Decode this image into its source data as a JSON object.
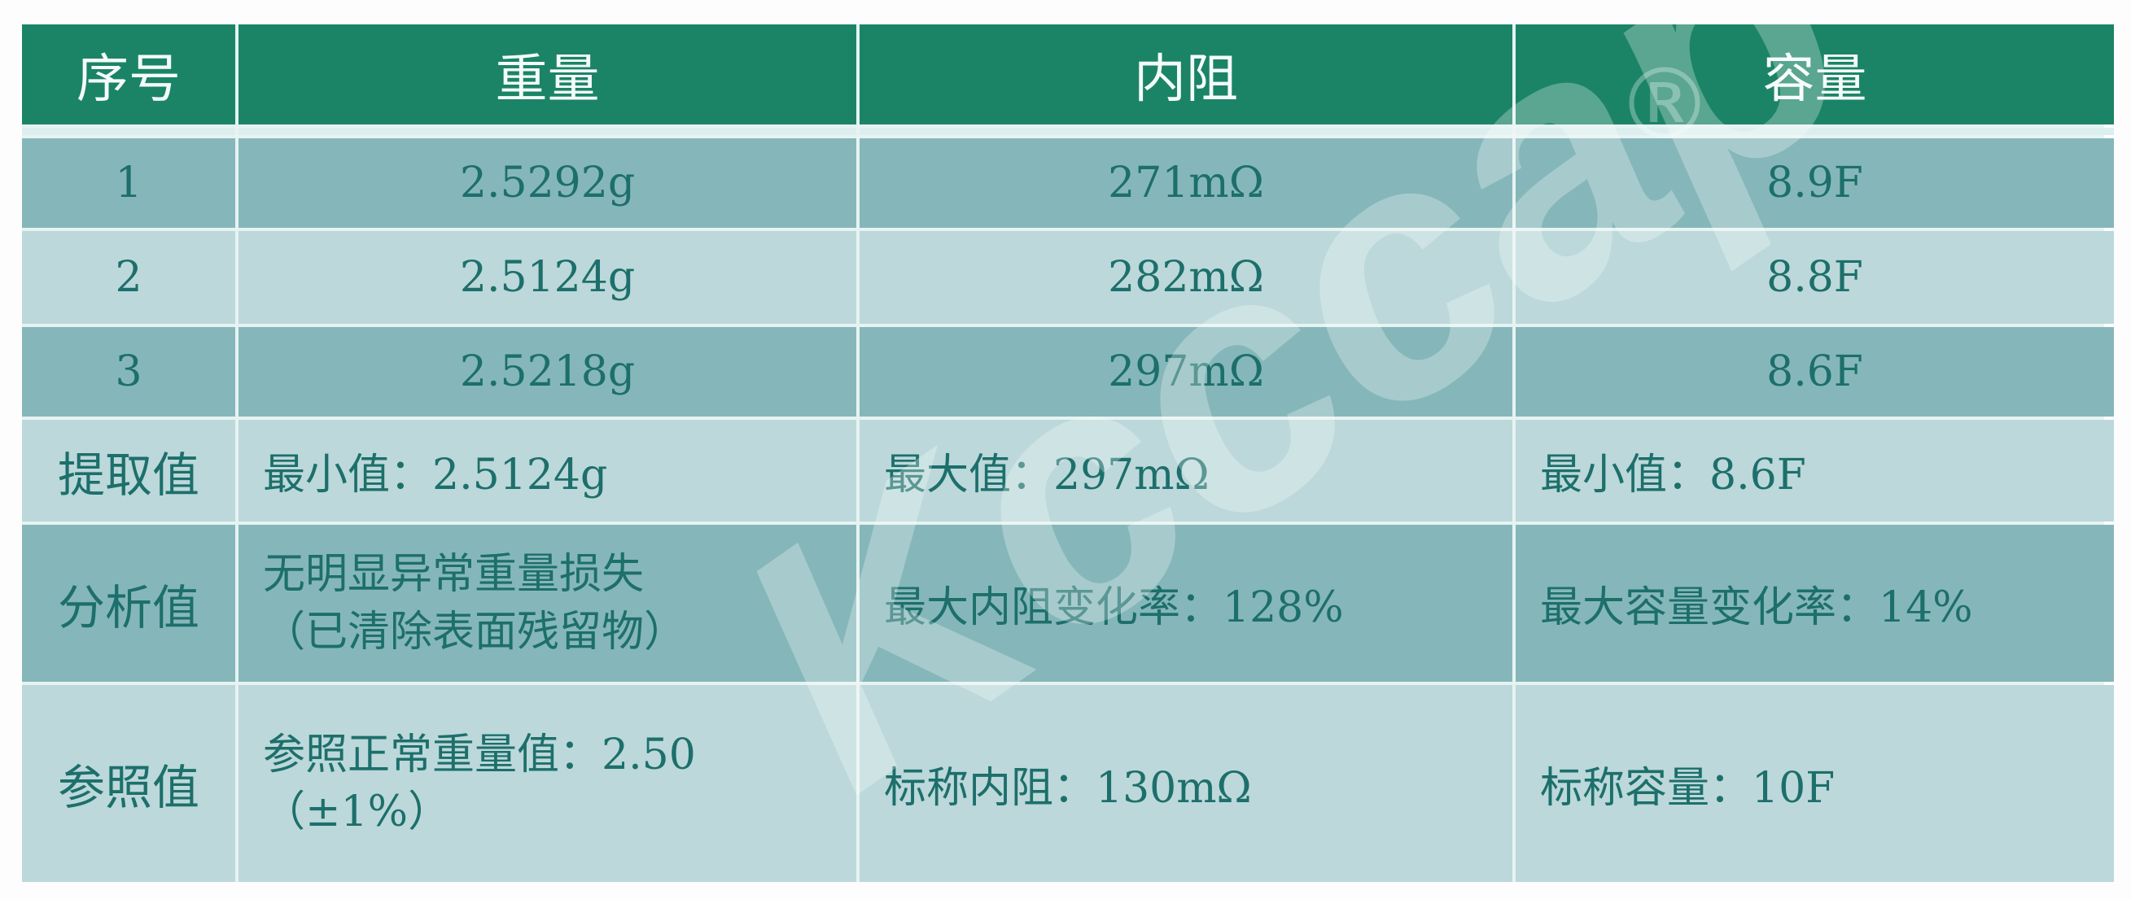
{
  "headers": [
    "序号",
    "重量",
    "内阻",
    "容量"
  ],
  "rows": [
    {
      "id": "1",
      "weight": "2.5292g",
      "resistance": "271mΩ",
      "capacity": "8.9F"
    },
    {
      "id": "2",
      "weight": "2.5124g",
      "resistance": "282mΩ",
      "capacity": "8.8F"
    },
    {
      "id": "3",
      "weight": "2.5218g",
      "resistance": "297mΩ",
      "capacity": "8.6F"
    }
  ],
  "extract": {
    "label": "提取值",
    "weight": "最小值：2.5124g",
    "resistance": "最大值：297mΩ",
    "capacity": "最小值：8.6F"
  },
  "analysis": {
    "label": "分析值",
    "weight_line1": "无明显异常重量损失",
    "weight_line2": "（已清除表面残留物）",
    "resistance": "最大内阻变化率：128%",
    "capacity": "最大容量变化率：14%"
  },
  "reference": {
    "label": "参照值",
    "weight_line1": "参照正常重量值：2.50",
    "weight_line2": "（±1%）",
    "resistance": "标称内阻：130mΩ",
    "capacity": "标称容量：10F"
  },
  "watermark": {
    "text": "Kcccap",
    "mark": "®"
  },
  "colors": {
    "header": "#1b8466",
    "row_dark": "#85b7ba",
    "row_light": "#bcd8da",
    "text": "#1d6f6b"
  }
}
